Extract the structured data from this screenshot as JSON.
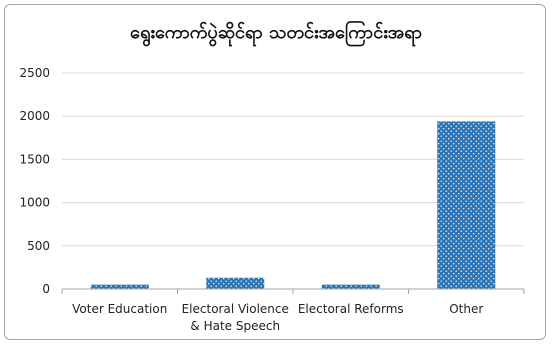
{
  "chart_data": {
    "type": "bar",
    "title": "ရွေးကောက်ပွဲဆိုင်ရာ သတင်းအကြောင်းအရာ",
    "categories": [
      [
        "Voter Education"
      ],
      [
        "Electoral Violence",
        "& Hate Speech"
      ],
      [
        "Electoral Reforms"
      ],
      [
        "Other"
      ]
    ],
    "values": [
      50,
      130,
      50,
      1940
    ],
    "ylim": [
      0,
      2500
    ],
    "yticks": [
      0,
      500,
      1000,
      1500,
      2000,
      2500
    ],
    "grid": true,
    "legend": "none",
    "bar_color": "#2e75b6",
    "bar_pattern": "white dots"
  }
}
